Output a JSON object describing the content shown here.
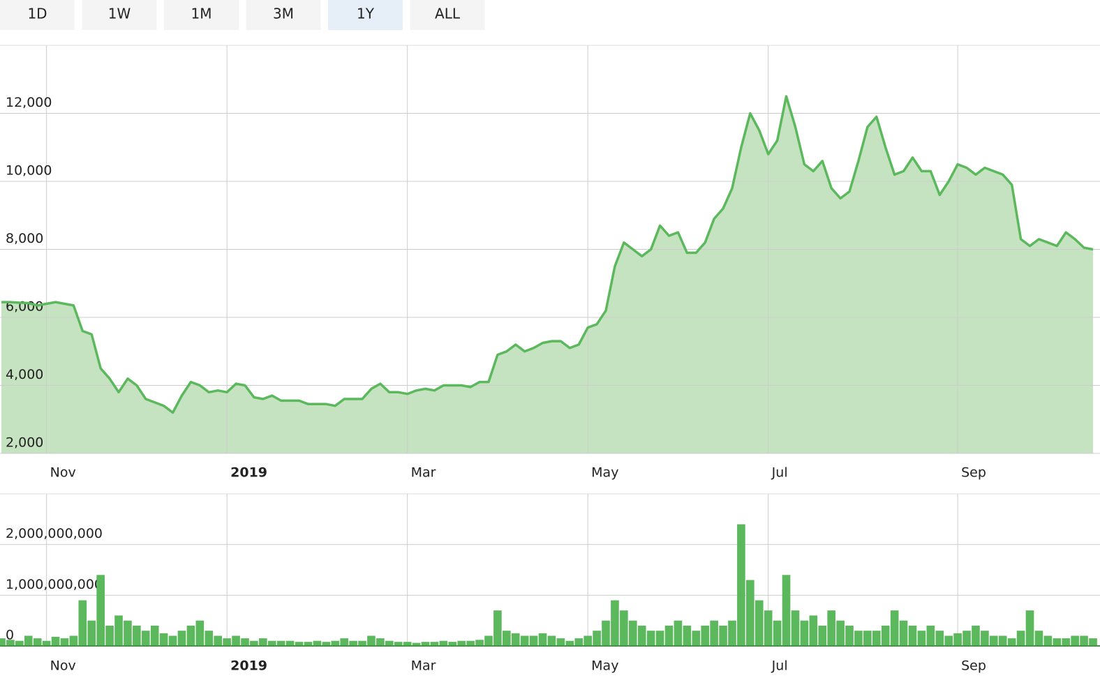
{
  "buttons": [
    "1D",
    "1W",
    "1M",
    "3M",
    "1Y",
    "ALL"
  ],
  "active_button": 4,
  "chart_data": [
    {
      "type": "area",
      "categories": [
        null,
        null,
        null,
        null,
        null,
        "Nov",
        null,
        null,
        null,
        null,
        null,
        null,
        null,
        null,
        null,
        null,
        null,
        null,
        null,
        null,
        null,
        null,
        null,
        null,
        null,
        "2019",
        null,
        null,
        null,
        null,
        null,
        null,
        null,
        null,
        null,
        null,
        null,
        null,
        null,
        null,
        null,
        null,
        null,
        null,
        null,
        "Mar",
        null,
        null,
        null,
        null,
        null,
        null,
        null,
        null,
        null,
        null,
        null,
        null,
        null,
        null,
        null,
        null,
        null,
        null,
        null,
        "May",
        null,
        null,
        null,
        null,
        null,
        null,
        null,
        null,
        null,
        null,
        null,
        null,
        null,
        null,
        null,
        null,
        null,
        null,
        null,
        "Jul",
        null,
        null,
        null,
        null,
        null,
        null,
        null,
        null,
        null,
        null,
        null,
        null,
        null,
        null,
        null,
        null,
        null,
        null,
        null,
        null,
        "Sep",
        null,
        null,
        null,
        null,
        null,
        null,
        null,
        null,
        null,
        null,
        null,
        null,
        null,
        null,
        null
      ],
      "series": [
        {
          "color": "#5cb85c",
          "fill": "#c5e3c0",
          "values": [
            6450,
            6450,
            6430,
            6420,
            6350,
            6400,
            6450,
            6400,
            6350,
            5600,
            5500,
            4500,
            4200,
            3800,
            4200,
            4000,
            3600,
            3500,
            3400,
            3200,
            3700,
            4100,
            4000,
            3800,
            3850,
            3800,
            4050,
            4000,
            3650,
            3600,
            3700,
            3550,
            3550,
            3550,
            3450,
            3450,
            3450,
            3400,
            3600,
            3600,
            3600,
            3900,
            4050,
            3800,
            3800,
            3750,
            3850,
            3900,
            3850,
            4000,
            4000,
            4000,
            3950,
            4100,
            4100,
            4900,
            5000,
            5200,
            5000,
            5100,
            5250,
            5300,
            5300,
            5100,
            5200,
            5700,
            5800,
            6200,
            7500,
            8200,
            8000,
            7800,
            8000,
            8700,
            8400,
            8500,
            7900,
            7900,
            8200,
            8900,
            9200,
            9800,
            11000,
            12000,
            11500,
            10800,
            11200,
            12500,
            11600,
            10500,
            10300,
            10600,
            9800,
            9500,
            9700,
            10600,
            11600,
            11900,
            11000,
            10200,
            10300,
            10700,
            10300,
            10300,
            9600,
            10000,
            10500,
            10400,
            10200,
            10400,
            10300,
            10200,
            9900,
            8300,
            8100,
            8300,
            8200,
            8100,
            8500,
            8300,
            8050,
            8000
          ]
        }
      ],
      "ylim": [
        2000,
        14000
      ],
      "yticks": [
        {
          "value": 2000,
          "label": "2,000"
        },
        {
          "value": 4000,
          "label": "4,000"
        },
        {
          "value": 6000,
          "label": "6,000"
        },
        {
          "value": 8000,
          "label": "8,000"
        },
        {
          "value": 10000,
          "label": "10,000"
        },
        {
          "value": 12000,
          "label": "12,000"
        }
      ],
      "grid": true
    },
    {
      "type": "bar",
      "categories": [
        null,
        null,
        null,
        null,
        null,
        "Nov",
        null,
        null,
        null,
        null,
        null,
        null,
        null,
        null,
        null,
        null,
        null,
        null,
        null,
        null,
        null,
        null,
        null,
        null,
        null,
        "2019",
        null,
        null,
        null,
        null,
        null,
        null,
        null,
        null,
        null,
        null,
        null,
        null,
        null,
        null,
        null,
        null,
        null,
        null,
        null,
        "Mar",
        null,
        null,
        null,
        null,
        null,
        null,
        null,
        null,
        null,
        null,
        null,
        null,
        null,
        null,
        null,
        null,
        null,
        null,
        null,
        "May",
        null,
        null,
        null,
        null,
        null,
        null,
        null,
        null,
        null,
        null,
        null,
        null,
        null,
        null,
        null,
        null,
        null,
        null,
        null,
        "Jul",
        null,
        null,
        null,
        null,
        null,
        null,
        null,
        null,
        null,
        null,
        null,
        null,
        null,
        null,
        null,
        null,
        null,
        null,
        null,
        null,
        "Sep",
        null,
        null,
        null,
        null,
        null,
        null,
        null,
        null,
        null,
        null,
        null,
        null,
        null,
        null,
        null
      ],
      "color": "#5cb85c",
      "values": [
        150000000,
        120000000,
        100000000,
        200000000,
        150000000,
        100000000,
        180000000,
        150000000,
        200000000,
        900000000,
        500000000,
        1400000000,
        400000000,
        600000000,
        500000000,
        400000000,
        300000000,
        400000000,
        250000000,
        200000000,
        300000000,
        400000000,
        500000000,
        300000000,
        200000000,
        150000000,
        200000000,
        150000000,
        100000000,
        150000000,
        100000000,
        100000000,
        100000000,
        80000000,
        80000000,
        100000000,
        80000000,
        100000000,
        150000000,
        100000000,
        100000000,
        200000000,
        150000000,
        100000000,
        80000000,
        80000000,
        60000000,
        80000000,
        80000000,
        100000000,
        80000000,
        100000000,
        100000000,
        120000000,
        200000000,
        700000000,
        300000000,
        250000000,
        200000000,
        200000000,
        250000000,
        200000000,
        150000000,
        100000000,
        150000000,
        200000000,
        300000000,
        500000000,
        900000000,
        700000000,
        500000000,
        400000000,
        300000000,
        300000000,
        400000000,
        500000000,
        400000000,
        300000000,
        400000000,
        500000000,
        400000000,
        500000000,
        2400000000,
        1300000000,
        900000000,
        700000000,
        500000000,
        1400000000,
        700000000,
        500000000,
        600000000,
        400000000,
        700000000,
        500000000,
        400000000,
        300000000,
        300000000,
        300000000,
        400000000,
        700000000,
        500000000,
        400000000,
        300000000,
        400000000,
        300000000,
        200000000,
        250000000,
        300000000,
        400000000,
        300000000,
        200000000,
        200000000,
        150000000,
        300000000,
        700000000,
        300000000,
        200000000,
        150000000,
        150000000,
        200000000,
        200000000,
        150000000
      ],
      "ylim": [
        0,
        3000000000
      ],
      "yticks": [
        0,
        {
          "value": 1000000000,
          "label": "1,000,000,000"
        },
        {
          "value": 2000000000,
          "label": "2,000,000,000"
        }
      ],
      "grid": true
    }
  ]
}
